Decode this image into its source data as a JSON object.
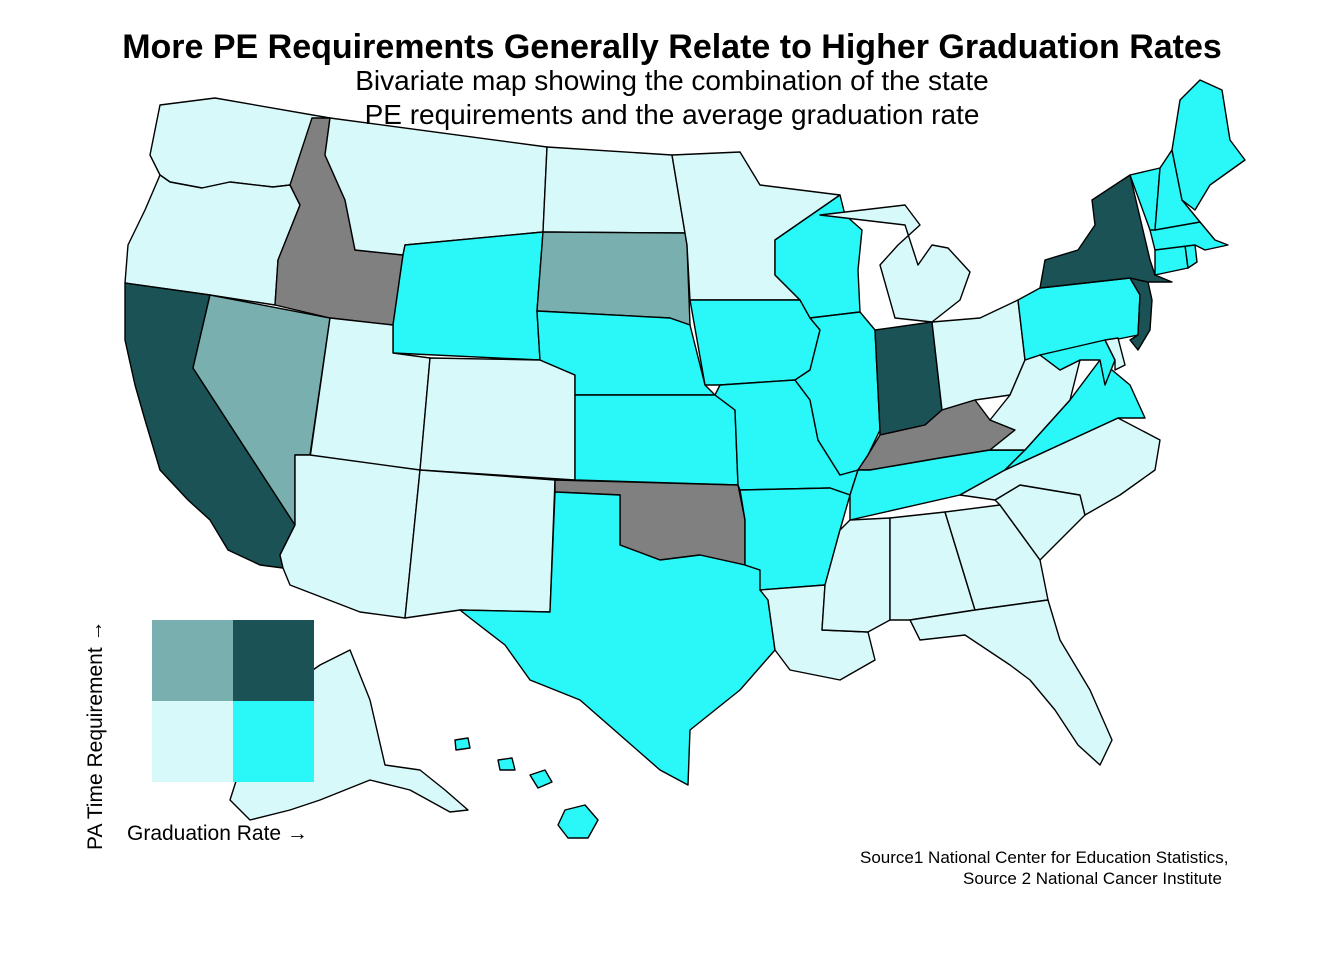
{
  "title": "More PE Requirements Generally Relate to Higher Graduation Rates",
  "subtitle": {
    "line1": "Bivariate map showing the combination of the state",
    "line2": "PE requirements and the average graduation rate"
  },
  "source": {
    "line1": "Source1 National Center for Education Statistics,",
    "line2": "Source 2 National Cancer Institute"
  },
  "legend": {
    "x_label": "Graduation Rate →",
    "y_label": "PA Time Requirement →",
    "colors": {
      "low_pa_low_grad": "#d8f9fa",
      "low_pa_high_grad": "#2af7f7",
      "high_pa_low_grad": "#7aafaf",
      "high_pa_high_grad": "#1a5255"
    }
  },
  "palette": {
    "light": "#d8f9fa",
    "cyan": "#2af7f7",
    "gray": "#808080",
    "muted": "#7aafaf",
    "dark": "#1a5255"
  },
  "states": {
    "WA": "light",
    "OR": "light",
    "CA": "dark",
    "NV": "muted",
    "ID": "gray",
    "MT": "light",
    "WY": "cyan",
    "UT": "light",
    "CO": "light",
    "AZ": "light",
    "NM": "light",
    "ND": "light",
    "SD": "muted",
    "NE": "cyan",
    "KS": "cyan",
    "OK": "gray",
    "TX": "cyan",
    "MN": "light",
    "IA": "cyan",
    "MO": "cyan",
    "AR": "cyan",
    "LA": "light",
    "WI": "cyan",
    "IL": "cyan",
    "MI": "light",
    "IN": "dark",
    "OH": "light",
    "KY": "gray",
    "TN": "cyan",
    "MS": "light",
    "AL": "light",
    "GA": "light",
    "FL": "light",
    "SC": "light",
    "NC": "light",
    "VA": "cyan",
    "WV": "light",
    "PA": "cyan",
    "NY": "dark",
    "NJ": "dark",
    "MD": "cyan",
    "DE": "light",
    "CT": "cyan",
    "RI": "cyan",
    "MA": "cyan",
    "VT": "cyan",
    "NH": "cyan",
    "ME": "cyan",
    "AK": "light",
    "HI": "cyan"
  }
}
